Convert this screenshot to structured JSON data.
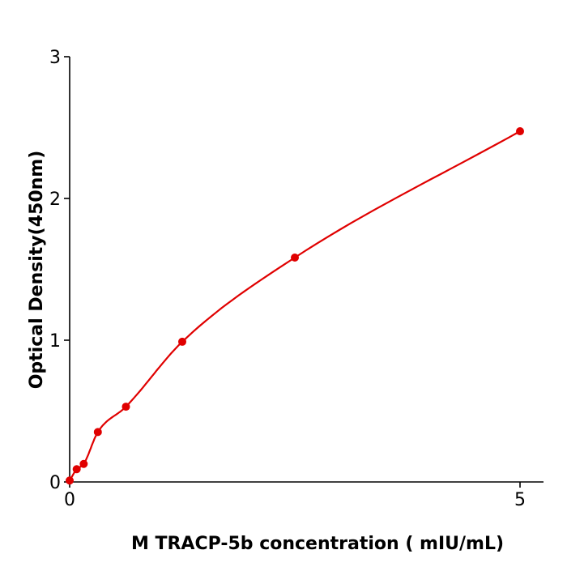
{
  "chart_data": {
    "type": "scatter",
    "title": "",
    "xlabel": "M  TRACP-5b concentration ( mIU/mL)",
    "ylabel": "Optical Density(450nm)",
    "xlim": [
      0,
      5.27
    ],
    "ylim": [
      0,
      3
    ],
    "xticks": [
      "0",
      "5"
    ],
    "yticks": [
      "0",
      "1",
      "2",
      "3"
    ],
    "grid": false,
    "legend": "none",
    "color": "#e00000",
    "points": {
      "x": [
        0,
        0.078,
        0.156,
        0.313,
        0.625,
        1.25,
        2.5,
        5
      ],
      "y": [
        0.01,
        0.09,
        0.127,
        0.352,
        0.531,
        0.989,
        1.583,
        2.474
      ]
    },
    "fit_curve": true
  }
}
